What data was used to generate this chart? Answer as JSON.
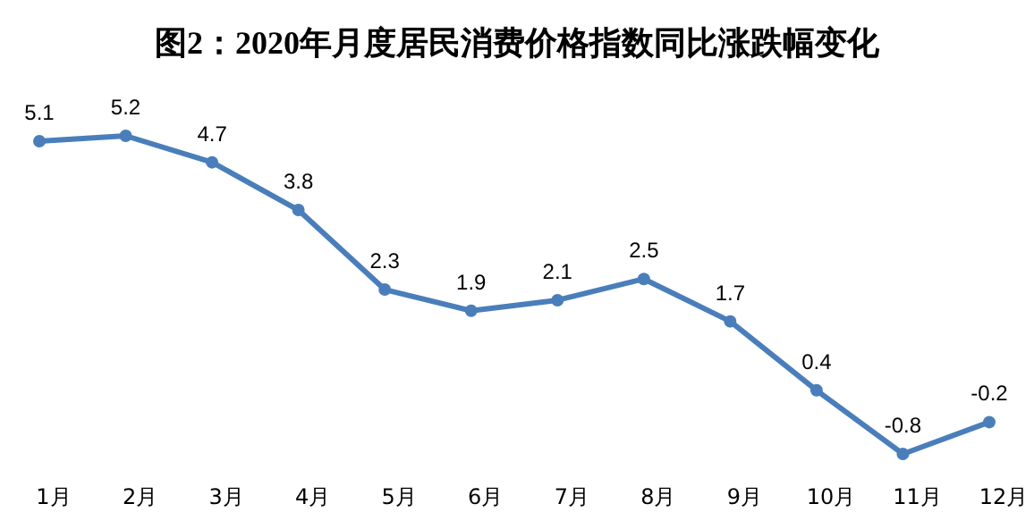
{
  "chart_data": {
    "type": "line",
    "title": "图2：2020年月度居民消费价格指数同比涨跌幅变化",
    "categories": [
      "1月",
      "2月",
      "3月",
      "4月",
      "5月",
      "6月",
      "7月",
      "8月",
      "9月",
      "10月",
      "11月",
      "12月"
    ],
    "series": [
      {
        "color": "#4a7ebb",
        "values": [
          5.1,
          5.2,
          4.7,
          3.8,
          2.3,
          1.9,
          2.1,
          2.5,
          1.7,
          0.4,
          -0.8,
          -0.2
        ]
      }
    ],
    "data_labels": true,
    "marker": "circle"
  }
}
